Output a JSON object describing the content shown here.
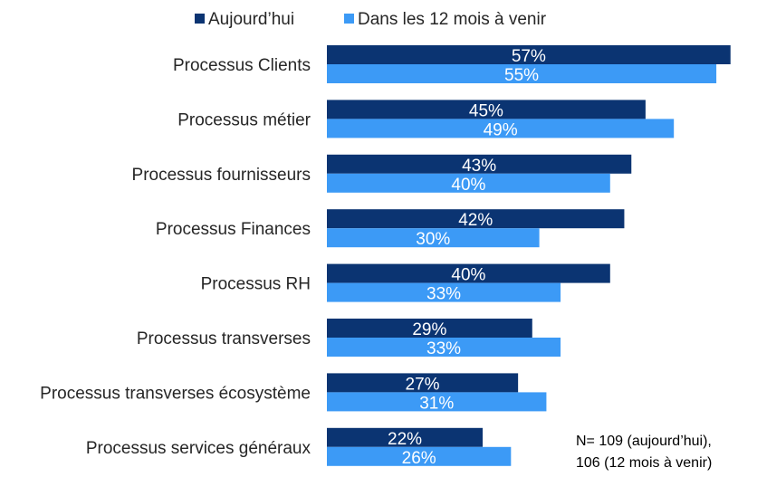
{
  "chart_data": {
    "type": "bar",
    "orientation": "horizontal",
    "categories": [
      "Processus Clients",
      "Processus métier",
      "Processus fournisseurs",
      "Processus Finances",
      "Processus RH",
      "Processus transverses",
      "Processus transverses écosystème",
      "Processus services généraux"
    ],
    "series": [
      {
        "name": "Aujourd’hui",
        "color": "#0b3472",
        "values": [
          57,
          45,
          43,
          42,
          40,
          29,
          27,
          22
        ],
        "labels": [
          "57%",
          "45%",
          "43%",
          "42%",
          "40%",
          "29%",
          "27%",
          "22%"
        ]
      },
      {
        "name": "Dans les 12 mois à venir",
        "color": "#3c9af6",
        "values": [
          55,
          49,
          40,
          30,
          33,
          33,
          31,
          26
        ],
        "labels": [
          "55%",
          "49%",
          "40%",
          "30%",
          "33%",
          "33%",
          "31%",
          "26%"
        ]
      }
    ],
    "unit": "%",
    "legend_position": "top",
    "grid": false,
    "note": [
      "N= 109 (aujourd’hui),",
      "106 (12 mois à venir)"
    ]
  }
}
